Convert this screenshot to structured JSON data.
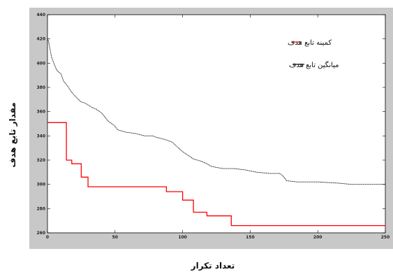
{
  "chart_data": {
    "type": "line",
    "xlabel": "تعداد تکرار",
    "ylabel": "مقدار تابع هدف",
    "xlim": [
      0,
      250
    ],
    "ylim": [
      260,
      440
    ],
    "x_ticks": [
      0,
      50,
      100,
      150,
      200,
      250
    ],
    "y_ticks": [
      260,
      280,
      300,
      320,
      340,
      360,
      380,
      400,
      420,
      440
    ],
    "grid": false,
    "legend_position": "top-right",
    "series": [
      {
        "name": "کمینه تابع هدف",
        "color": "#ff0000",
        "style": "step",
        "points": [
          [
            0,
            351
          ],
          [
            14,
            351
          ],
          [
            14,
            320
          ],
          [
            18,
            320
          ],
          [
            18,
            317
          ],
          [
            25,
            317
          ],
          [
            25,
            306
          ],
          [
            30,
            306
          ],
          [
            30,
            298
          ],
          [
            88,
            298
          ],
          [
            88,
            294
          ],
          [
            100,
            294
          ],
          [
            100,
            287
          ],
          [
            108,
            287
          ],
          [
            108,
            277
          ],
          [
            118,
            277
          ],
          [
            118,
            274
          ],
          [
            136,
            274
          ],
          [
            136,
            266
          ],
          [
            250,
            266
          ]
        ]
      },
      {
        "name": "میانگین تابع هدف",
        "color": "#000000",
        "style": "dotted",
        "points": [
          [
            0,
            421
          ],
          [
            1,
            417
          ],
          [
            3,
            405
          ],
          [
            5,
            399
          ],
          [
            7,
            394
          ],
          [
            10,
            391
          ],
          [
            12,
            385
          ],
          [
            15,
            381
          ],
          [
            18,
            376
          ],
          [
            22,
            371
          ],
          [
            25,
            368
          ],
          [
            28,
            367
          ],
          [
            32,
            364
          ],
          [
            36,
            362
          ],
          [
            40,
            359
          ],
          [
            45,
            352
          ],
          [
            49,
            349
          ],
          [
            52,
            345
          ],
          [
            58,
            343
          ],
          [
            65,
            342
          ],
          [
            72,
            340
          ],
          [
            78,
            340
          ],
          [
            80,
            339
          ],
          [
            87,
            337
          ],
          [
            92,
            335
          ],
          [
            96,
            331
          ],
          [
            100,
            327
          ],
          [
            104,
            324
          ],
          [
            108,
            321
          ],
          [
            114,
            319
          ],
          [
            118,
            317
          ],
          [
            121,
            315
          ],
          [
            125,
            314
          ],
          [
            130,
            313
          ],
          [
            138,
            313
          ],
          [
            146,
            312
          ],
          [
            155,
            310
          ],
          [
            165,
            309
          ],
          [
            172,
            309
          ],
          [
            175,
            306
          ],
          [
            177,
            303
          ],
          [
            185,
            302
          ],
          [
            200,
            302
          ],
          [
            215,
            301
          ],
          [
            225,
            300
          ],
          [
            250,
            300
          ]
        ]
      }
    ]
  }
}
